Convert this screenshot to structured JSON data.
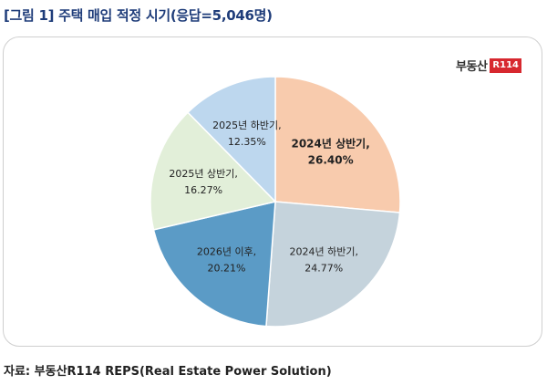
{
  "title": "[그림 1] 주택 매입 적정 시기(응답=5,046명)",
  "source": "자료: 부동산R114 REPS(Real Estate Power Solution)",
  "logo": {
    "text": "부동산",
    "badge": "R114"
  },
  "chart_data": {
    "type": "pie",
    "title": "[그림 1] 주택 매입 적정 시기(응답=5,046명)",
    "slices": [
      {
        "label": "2024년 상반기,",
        "value_label": "26.40%",
        "value": 26.4,
        "color": "#f8cbad",
        "bold": true
      },
      {
        "label": "2024년 하반기,",
        "value_label": "24.77%",
        "value": 24.77,
        "color": "#c5d3dc",
        "bold": false
      },
      {
        "label": "2026년 이후,",
        "value_label": "20.21%",
        "value": 20.21,
        "color": "#5b9bc6",
        "bold": false
      },
      {
        "label": "2025년 상반기,",
        "value_label": "16.27%",
        "value": 16.27,
        "color": "#e2efd9",
        "bold": false
      },
      {
        "label": "2025년 하반기,",
        "value_label": "12.35%",
        "value": 12.35,
        "color": "#bdd7ee",
        "bold": false
      }
    ]
  }
}
